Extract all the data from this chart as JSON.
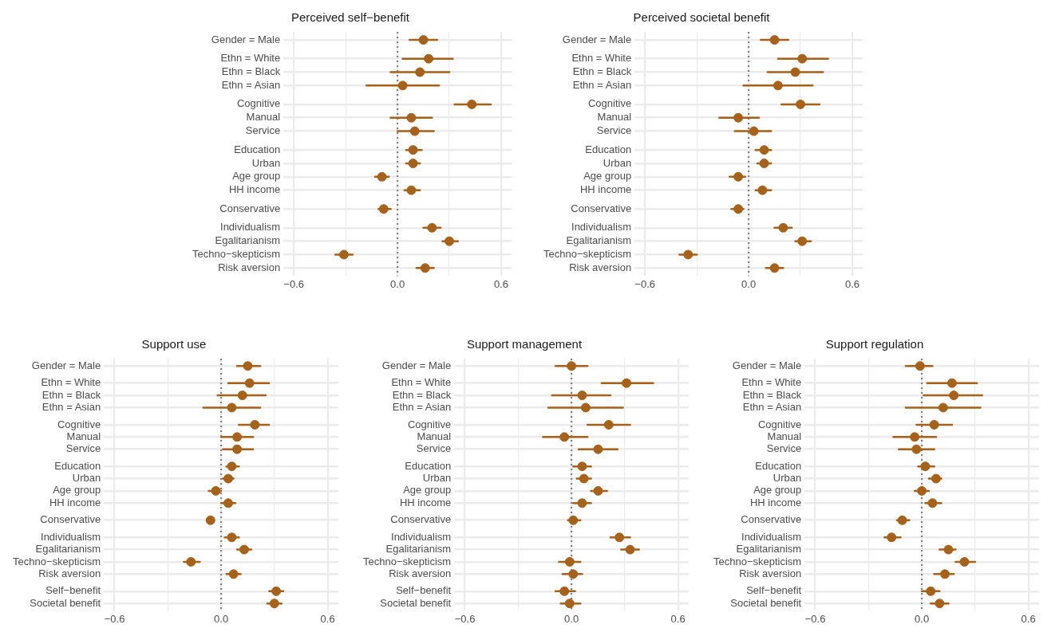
{
  "chart_data": [
    {
      "type": "scatter",
      "title": "Perceived self−benefit",
      "orientation": "horizontal",
      "marker": "circle",
      "grid": true,
      "categories": [
        "Gender = Male",
        null,
        "Ethn = White",
        "Ethn = Black",
        "Ethn = Asian",
        null,
        "Cognitive",
        "Manual",
        "Service",
        null,
        "Education",
        "Urban",
        "Age group",
        "HH income",
        null,
        "Conservative",
        null,
        "Individualism",
        "Egalitarianism",
        "Techno−skepticism",
        "Risk aversion"
      ],
      "series": [
        {
          "color": "#a6611a",
          "values": [
            0.15,
            null,
            0.18,
            0.13,
            0.03,
            null,
            0.43,
            0.08,
            0.1,
            null,
            0.09,
            0.09,
            -0.09,
            0.08,
            null,
            -0.08,
            null,
            0.2,
            0.3,
            -0.31,
            0.16
          ],
          "errors": [
            [
              0.07,
              0.23
            ],
            null,
            [
              0.03,
              0.32
            ],
            [
              -0.04,
              0.3
            ],
            [
              -0.18,
              0.24
            ],
            null,
            [
              0.33,
              0.54
            ],
            [
              -0.04,
              0.2
            ],
            [
              0.0,
              0.21
            ],
            null,
            [
              0.05,
              0.14
            ],
            [
              0.05,
              0.13
            ],
            [
              -0.13,
              -0.05
            ],
            [
              0.04,
              0.13
            ],
            null,
            [
              -0.11,
              -0.04
            ],
            null,
            [
              0.15,
              0.25
            ],
            [
              0.26,
              0.35
            ],
            [
              -0.36,
              -0.26
            ],
            [
              0.11,
              0.21
            ]
          ]
        }
      ],
      "xlim": [
        -0.66,
        0.66
      ],
      "xticks": [
        {
          "value": -0.6,
          "label": "−0.6"
        },
        {
          "value": -0.3,
          "label": null
        },
        {
          "value": 0,
          "label": "0.0"
        },
        {
          "value": 0.3,
          "label": null
        },
        {
          "value": 0.6,
          "label": "0.6"
        }
      ],
      "ref_lines": [
        {
          "axis": "x",
          "value": 0,
          "color": "#808080",
          "line_style": "dotted"
        }
      ]
    },
    {
      "type": "scatter",
      "title": "Perceived societal benefit",
      "orientation": "horizontal",
      "marker": "circle",
      "grid": true,
      "categories": [
        "Gender = Male",
        null,
        "Ethn = White",
        "Ethn = Black",
        "Ethn = Asian",
        null,
        "Cognitive",
        "Manual",
        "Service",
        null,
        "Education",
        "Urban",
        "Age group",
        "HH income",
        null,
        "Conservative",
        null,
        "Individualism",
        "Egalitarianism",
        "Techno−skepticism",
        "Risk aversion"
      ],
      "series": [
        {
          "color": "#a6611a",
          "values": [
            0.15,
            null,
            0.31,
            0.27,
            0.17,
            null,
            0.3,
            -0.06,
            0.03,
            null,
            0.09,
            0.09,
            -0.06,
            0.08,
            null,
            -0.06,
            null,
            0.2,
            0.31,
            -0.35,
            0.15
          ],
          "errors": [
            [
              0.07,
              0.23
            ],
            null,
            [
              0.17,
              0.46
            ],
            [
              0.11,
              0.43
            ],
            [
              -0.03,
              0.37
            ],
            null,
            [
              0.19,
              0.41
            ],
            [
              -0.17,
              0.06
            ],
            [
              -0.08,
              0.13
            ],
            null,
            [
              0.04,
              0.13
            ],
            [
              0.05,
              0.13
            ],
            [
              -0.11,
              -0.02
            ],
            [
              0.04,
              0.13
            ],
            null,
            [
              -0.1,
              -0.03
            ],
            null,
            [
              0.15,
              0.25
            ],
            [
              0.27,
              0.36
            ],
            [
              -0.4,
              -0.3
            ],
            [
              0.1,
              0.2
            ]
          ]
        }
      ],
      "xlim": [
        -0.66,
        0.66
      ],
      "xticks": [
        {
          "value": -0.6,
          "label": "−0.6"
        },
        {
          "value": -0.3,
          "label": null
        },
        {
          "value": 0,
          "label": "0.0"
        },
        {
          "value": 0.3,
          "label": null
        },
        {
          "value": 0.6,
          "label": "0.6"
        }
      ],
      "ref_lines": [
        {
          "axis": "x",
          "value": 0,
          "color": "#808080",
          "line_style": "dotted"
        }
      ]
    },
    {
      "type": "scatter",
      "title": "Support use",
      "orientation": "horizontal",
      "marker": "circle",
      "grid": true,
      "categories": [
        "Gender = Male",
        null,
        "Ethn = White",
        "Ethn = Black",
        "Ethn = Asian",
        null,
        "Cognitive",
        "Manual",
        "Service",
        null,
        "Education",
        "Urban",
        "Age group",
        "HH income",
        null,
        "Conservative",
        null,
        "Individualism",
        "Egalitarianism",
        "Techno−skepticism",
        "Risk aversion",
        null,
        "Self−benefit",
        "Societal benefit"
      ],
      "series": [
        {
          "color": "#a6611a",
          "values": [
            0.15,
            null,
            0.16,
            0.12,
            0.06,
            null,
            0.19,
            0.09,
            0.09,
            null,
            0.06,
            0.04,
            -0.03,
            0.04,
            null,
            -0.06,
            null,
            0.06,
            0.13,
            -0.17,
            0.07,
            null,
            0.31,
            0.3
          ],
          "errors": [
            [
              0.09,
              0.22
            ],
            null,
            [
              0.04,
              0.27
            ],
            [
              -0.02,
              0.25
            ],
            [
              -0.1,
              0.22
            ],
            null,
            [
              0.1,
              0.27
            ],
            [
              0.0,
              0.18
            ],
            [
              0.01,
              0.18
            ],
            null,
            [
              0.03,
              0.1
            ],
            [
              0.01,
              0.07
            ],
            [
              -0.07,
              0.0
            ],
            [
              0.0,
              0.08
            ],
            null,
            [
              -0.08,
              -0.04
            ],
            null,
            [
              0.02,
              0.1
            ],
            [
              0.09,
              0.17
            ],
            [
              -0.21,
              -0.12
            ],
            [
              0.03,
              0.11
            ],
            null,
            [
              0.27,
              0.35
            ],
            [
              0.26,
              0.34
            ]
          ]
        }
      ],
      "xlim": [
        -0.66,
        0.66
      ],
      "xticks": [
        {
          "value": -0.6,
          "label": "−0.6"
        },
        {
          "value": -0.3,
          "label": null
        },
        {
          "value": 0,
          "label": "0.0"
        },
        {
          "value": 0.3,
          "label": null
        },
        {
          "value": 0.6,
          "label": "0.6"
        }
      ],
      "ref_lines": [
        {
          "axis": "x",
          "value": 0,
          "color": "#808080",
          "line_style": "dotted"
        }
      ]
    },
    {
      "type": "scatter",
      "title": "Support management",
      "orientation": "horizontal",
      "marker": "circle",
      "grid": true,
      "categories": [
        "Gender = Male",
        null,
        "Ethn = White",
        "Ethn = Black",
        "Ethn = Asian",
        null,
        "Cognitive",
        "Manual",
        "Service",
        null,
        "Education",
        "Urban",
        "Age group",
        "HH income",
        null,
        "Conservative",
        null,
        "Individualism",
        "Egalitarianism",
        "Techno−skepticism",
        "Risk aversion",
        null,
        "Self−benefit",
        "Societal benefit"
      ],
      "series": [
        {
          "color": "#a6611a",
          "values": [
            0.0,
            null,
            0.31,
            0.06,
            0.08,
            null,
            0.21,
            -0.04,
            0.15,
            null,
            0.06,
            0.07,
            0.15,
            0.06,
            null,
            0.01,
            null,
            0.27,
            0.33,
            -0.01,
            0.01,
            null,
            -0.04,
            -0.01
          ],
          "errors": [
            [
              -0.09,
              0.09
            ],
            null,
            [
              0.17,
              0.46
            ],
            [
              -0.11,
              0.22
            ],
            [
              -0.13,
              0.29
            ],
            null,
            [
              0.09,
              0.33
            ],
            [
              -0.16,
              0.09
            ],
            [
              0.04,
              0.26
            ],
            null,
            [
              0.01,
              0.11
            ],
            [
              0.03,
              0.11
            ],
            [
              0.11,
              0.2
            ],
            [
              0.01,
              0.11
            ],
            null,
            [
              -0.02,
              0.05
            ],
            null,
            [
              0.22,
              0.33
            ],
            [
              0.28,
              0.38
            ],
            [
              -0.07,
              0.05
            ],
            [
              -0.05,
              0.06
            ],
            null,
            [
              -0.09,
              0.02
            ],
            [
              -0.06,
              0.05
            ]
          ]
        }
      ],
      "xlim": [
        -0.66,
        0.66
      ],
      "xticks": [
        {
          "value": -0.6,
          "label": "−0.6"
        },
        {
          "value": -0.3,
          "label": null
        },
        {
          "value": 0,
          "label": "0.0"
        },
        {
          "value": 0.3,
          "label": null
        },
        {
          "value": 0.6,
          "label": "0.6"
        }
      ],
      "ref_lines": [
        {
          "axis": "x",
          "value": 0,
          "color": "#808080",
          "line_style": "dotted"
        }
      ]
    },
    {
      "type": "scatter",
      "title": "Support regulation",
      "orientation": "horizontal",
      "marker": "circle",
      "grid": true,
      "categories": [
        "Gender = Male",
        null,
        "Ethn = White",
        "Ethn = Black",
        "Ethn = Asian",
        null,
        "Cognitive",
        "Manual",
        "Service",
        null,
        "Education",
        "Urban",
        "Age group",
        "HH income",
        null,
        "Conservative",
        null,
        "Individualism",
        "Egalitarianism",
        "Techno−skepticism",
        "Risk aversion",
        null,
        "Self−benefit",
        "Societal benefit"
      ],
      "series": [
        {
          "color": "#a6611a",
          "values": [
            -0.01,
            null,
            0.17,
            0.18,
            0.12,
            null,
            0.07,
            -0.04,
            -0.03,
            null,
            0.02,
            0.08,
            0.0,
            0.06,
            null,
            -0.11,
            null,
            -0.17,
            0.15,
            0.24,
            0.13,
            null,
            0.05,
            0.1
          ],
          "errors": [
            [
              -0.09,
              0.06
            ],
            null,
            [
              0.03,
              0.31
            ],
            [
              0.01,
              0.34
            ],
            [
              -0.09,
              0.33
            ],
            null,
            [
              -0.03,
              0.17
            ],
            [
              -0.16,
              0.08
            ],
            [
              -0.13,
              0.07
            ],
            null,
            [
              -0.02,
              0.07
            ],
            [
              0.04,
              0.11
            ],
            [
              -0.04,
              0.04
            ],
            [
              0.02,
              0.11
            ],
            null,
            [
              -0.14,
              -0.07
            ],
            null,
            [
              -0.21,
              -0.12
            ],
            [
              0.1,
              0.19
            ],
            [
              0.19,
              0.3
            ],
            [
              0.07,
              0.18
            ],
            null,
            [
              0.0,
              0.1
            ],
            [
              0.05,
              0.15
            ]
          ]
        }
      ],
      "xlim": [
        -0.66,
        0.66
      ],
      "xticks": [
        {
          "value": -0.6,
          "label": "−0.6"
        },
        {
          "value": -0.3,
          "label": null
        },
        {
          "value": 0,
          "label": "0.0"
        },
        {
          "value": 0.3,
          "label": null
        },
        {
          "value": 0.6,
          "label": "0.6"
        }
      ],
      "ref_lines": [
        {
          "axis": "x",
          "value": 0,
          "color": "#808080",
          "line_style": "dotted"
        }
      ]
    }
  ]
}
